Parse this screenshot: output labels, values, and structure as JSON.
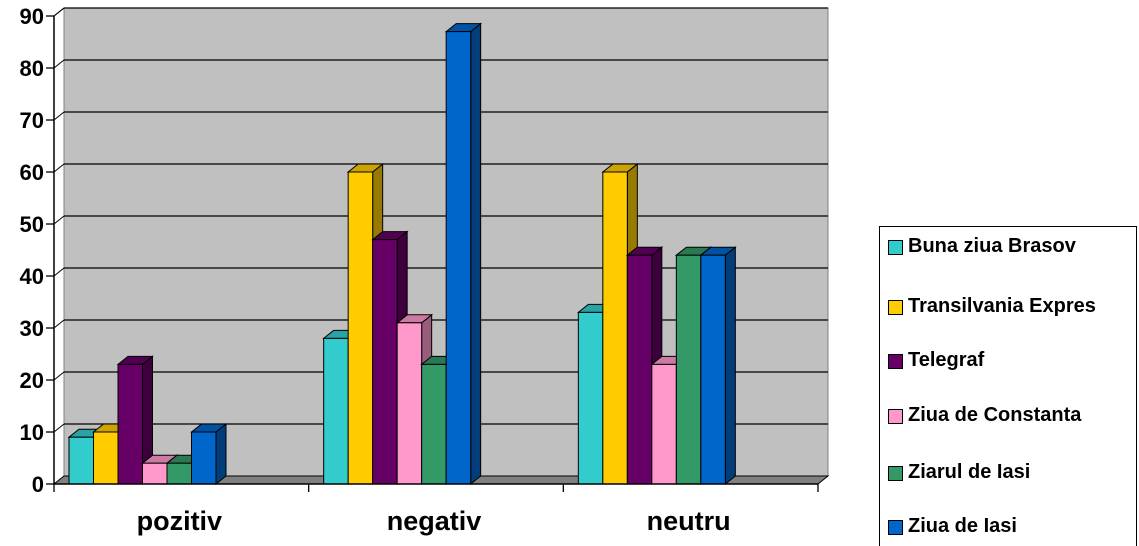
{
  "chart_data": {
    "type": "bar",
    "categories": [
      "pozitiv",
      "negativ",
      "neutru"
    ],
    "series": [
      {
        "name": "Buna ziua Brasov",
        "values": [
          9,
          28,
          33
        ],
        "color": "#33CCCC"
      },
      {
        "name": "Transilvania Expres",
        "values": [
          10,
          60,
          60
        ],
        "color": "#FFCC00"
      },
      {
        "name": "Telegraf",
        "values": [
          23,
          47,
          44
        ],
        "color": "#660066"
      },
      {
        "name": "Ziua de Constanta",
        "values": [
          4,
          31,
          23
        ],
        "color": "#FF99CC"
      },
      {
        "name": "Ziarul de Iasi",
        "values": [
          4,
          23,
          44
        ],
        "color": "#339966"
      },
      {
        "name": "Ziua de Iasi",
        "values": [
          10,
          87,
          44
        ],
        "color": "#0066CC"
      }
    ],
    "yticks": [
      "0",
      "10",
      "20",
      "30",
      "40",
      "50",
      "60",
      "70",
      "80",
      "90"
    ],
    "ylim": [
      0,
      90
    ],
    "grid": true,
    "plot_background": "#C0C0C0",
    "legend_position": "right"
  }
}
